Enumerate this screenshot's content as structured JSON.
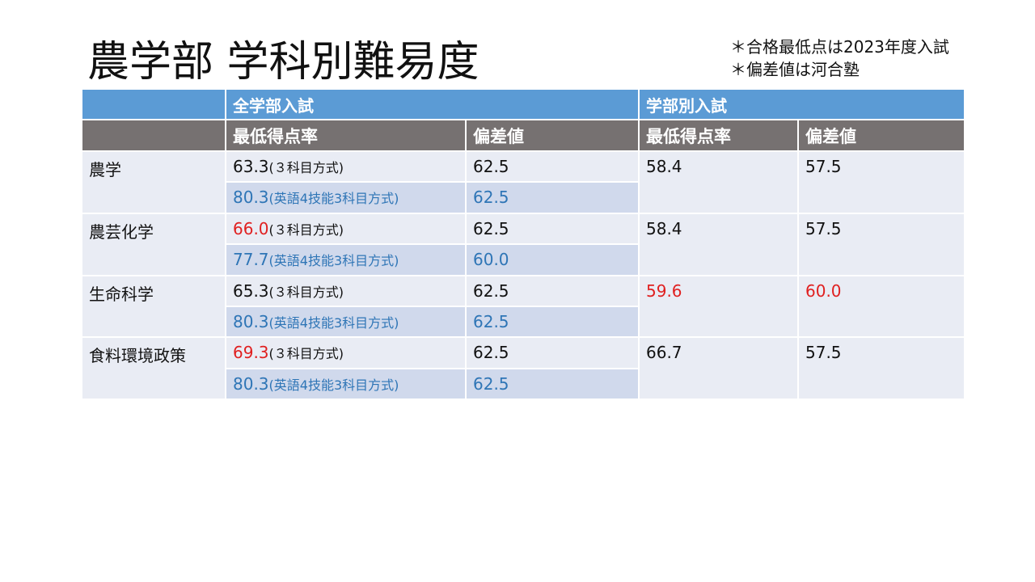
{
  "header": {
    "title": "農学部 学科別難易度",
    "notes": [
      "＊合格最低点は2023年度入試",
      "＊偏差値は河合塾"
    ]
  },
  "table": {
    "groups": [
      "全学部入試",
      "学部別入試"
    ],
    "columns": [
      "最低得点率",
      "偏差値",
      "最低得点率",
      "偏差値"
    ],
    "rows": [
      {
        "department": "農学",
        "all": [
          {
            "score": "63.3",
            "method": "(３科目方式)",
            "deviation": "62.5"
          },
          {
            "score": "80.3",
            "method": "(英語4技能3科目方式)",
            "deviation": "62.5",
            "color": "blue"
          }
        ],
        "faculty": {
          "score": "58.4",
          "deviation": "57.5"
        }
      },
      {
        "department": "農芸化学",
        "all": [
          {
            "score": "66.0",
            "method": "(３科目方式)",
            "deviation": "62.5",
            "score_color": "red"
          },
          {
            "score": "77.7",
            "method": "(英語4技能3科目方式)",
            "deviation": "60.0",
            "color": "blue"
          }
        ],
        "faculty": {
          "score": "58.4",
          "deviation": "57.5"
        }
      },
      {
        "department": "生命科学",
        "all": [
          {
            "score": "65.3",
            "method": "(３科目方式)",
            "deviation": "62.5"
          },
          {
            "score": "80.3",
            "method": "(英語4技能3科目方式)",
            "deviation": "62.5",
            "color": "blue"
          }
        ],
        "faculty": {
          "score": "59.6",
          "deviation": "60.0",
          "color": "red"
        }
      },
      {
        "department": "食料環境政策",
        "all": [
          {
            "score": "69.3",
            "method": "(３科目方式)",
            "deviation": "62.5",
            "score_color": "red"
          },
          {
            "score": "80.3",
            "method": "(英語4技能3科目方式)",
            "deviation": "62.5",
            "color": "blue"
          }
        ],
        "faculty": {
          "score": "66.7",
          "deviation": "57.5"
        }
      }
    ]
  }
}
